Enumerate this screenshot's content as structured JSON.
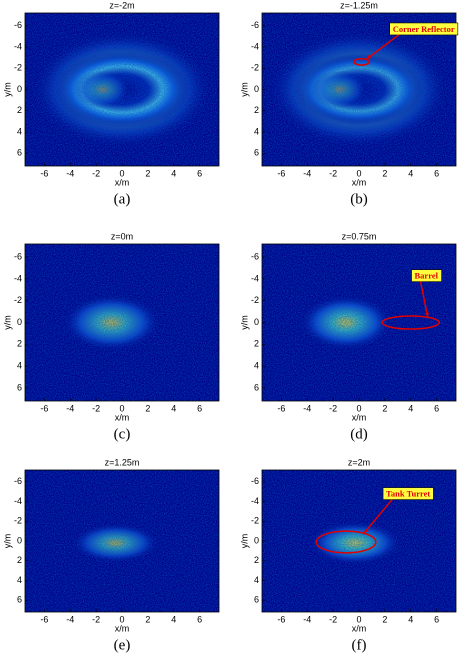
{
  "panels": [
    {
      "title": "z=-2m",
      "xlabel": "x/m",
      "ylabel": "y/m",
      "xticks": [
        -6,
        -4,
        -2,
        0,
        2,
        4,
        6
      ],
      "yticks": [
        -6,
        -4,
        -2,
        0,
        2,
        4,
        6
      ],
      "caption": "(a)"
    },
    {
      "title": "z=-1.25m",
      "xlabel": "x/m",
      "ylabel": "y/m",
      "xticks": [
        -6,
        -4,
        -2,
        0,
        2,
        4,
        6
      ],
      "yticks": [
        -6,
        -4,
        -2,
        0,
        2,
        4,
        6
      ],
      "caption": "(b)",
      "annotation": "Corner Reflector"
    },
    {
      "title": "z=0m",
      "xlabel": "x/m",
      "ylabel": "y/m",
      "xticks": [
        -6,
        -4,
        -2,
        0,
        2,
        4,
        6
      ],
      "yticks": [
        -6,
        -4,
        -2,
        0,
        2,
        4,
        6
      ],
      "caption": "(c)"
    },
    {
      "title": "z=0.75m",
      "xlabel": "x/m",
      "ylabel": "y/m",
      "xticks": [
        -6,
        -4,
        -2,
        0,
        2,
        4,
        6
      ],
      "yticks": [
        -6,
        -4,
        -2,
        0,
        2,
        4,
        6
      ],
      "caption": "(d)",
      "annotation": "Barrel"
    },
    {
      "title": "z=1.25m",
      "xlabel": "x/m",
      "ylabel": "y/m",
      "xticks": [
        -6,
        -4,
        -2,
        0,
        2,
        4,
        6
      ],
      "yticks": [
        -6,
        -4,
        -2,
        0,
        2,
        4,
        6
      ],
      "caption": "(e)"
    },
    {
      "title": "z=2m",
      "xlabel": "x/m",
      "ylabel": "y/m",
      "xticks": [
        -6,
        -4,
        -2,
        0,
        2,
        4,
        6
      ],
      "yticks": [
        -6,
        -4,
        -2,
        0,
        2,
        4,
        6
      ],
      "caption": "(f)",
      "annotation": "Tank Turret"
    }
  ]
}
